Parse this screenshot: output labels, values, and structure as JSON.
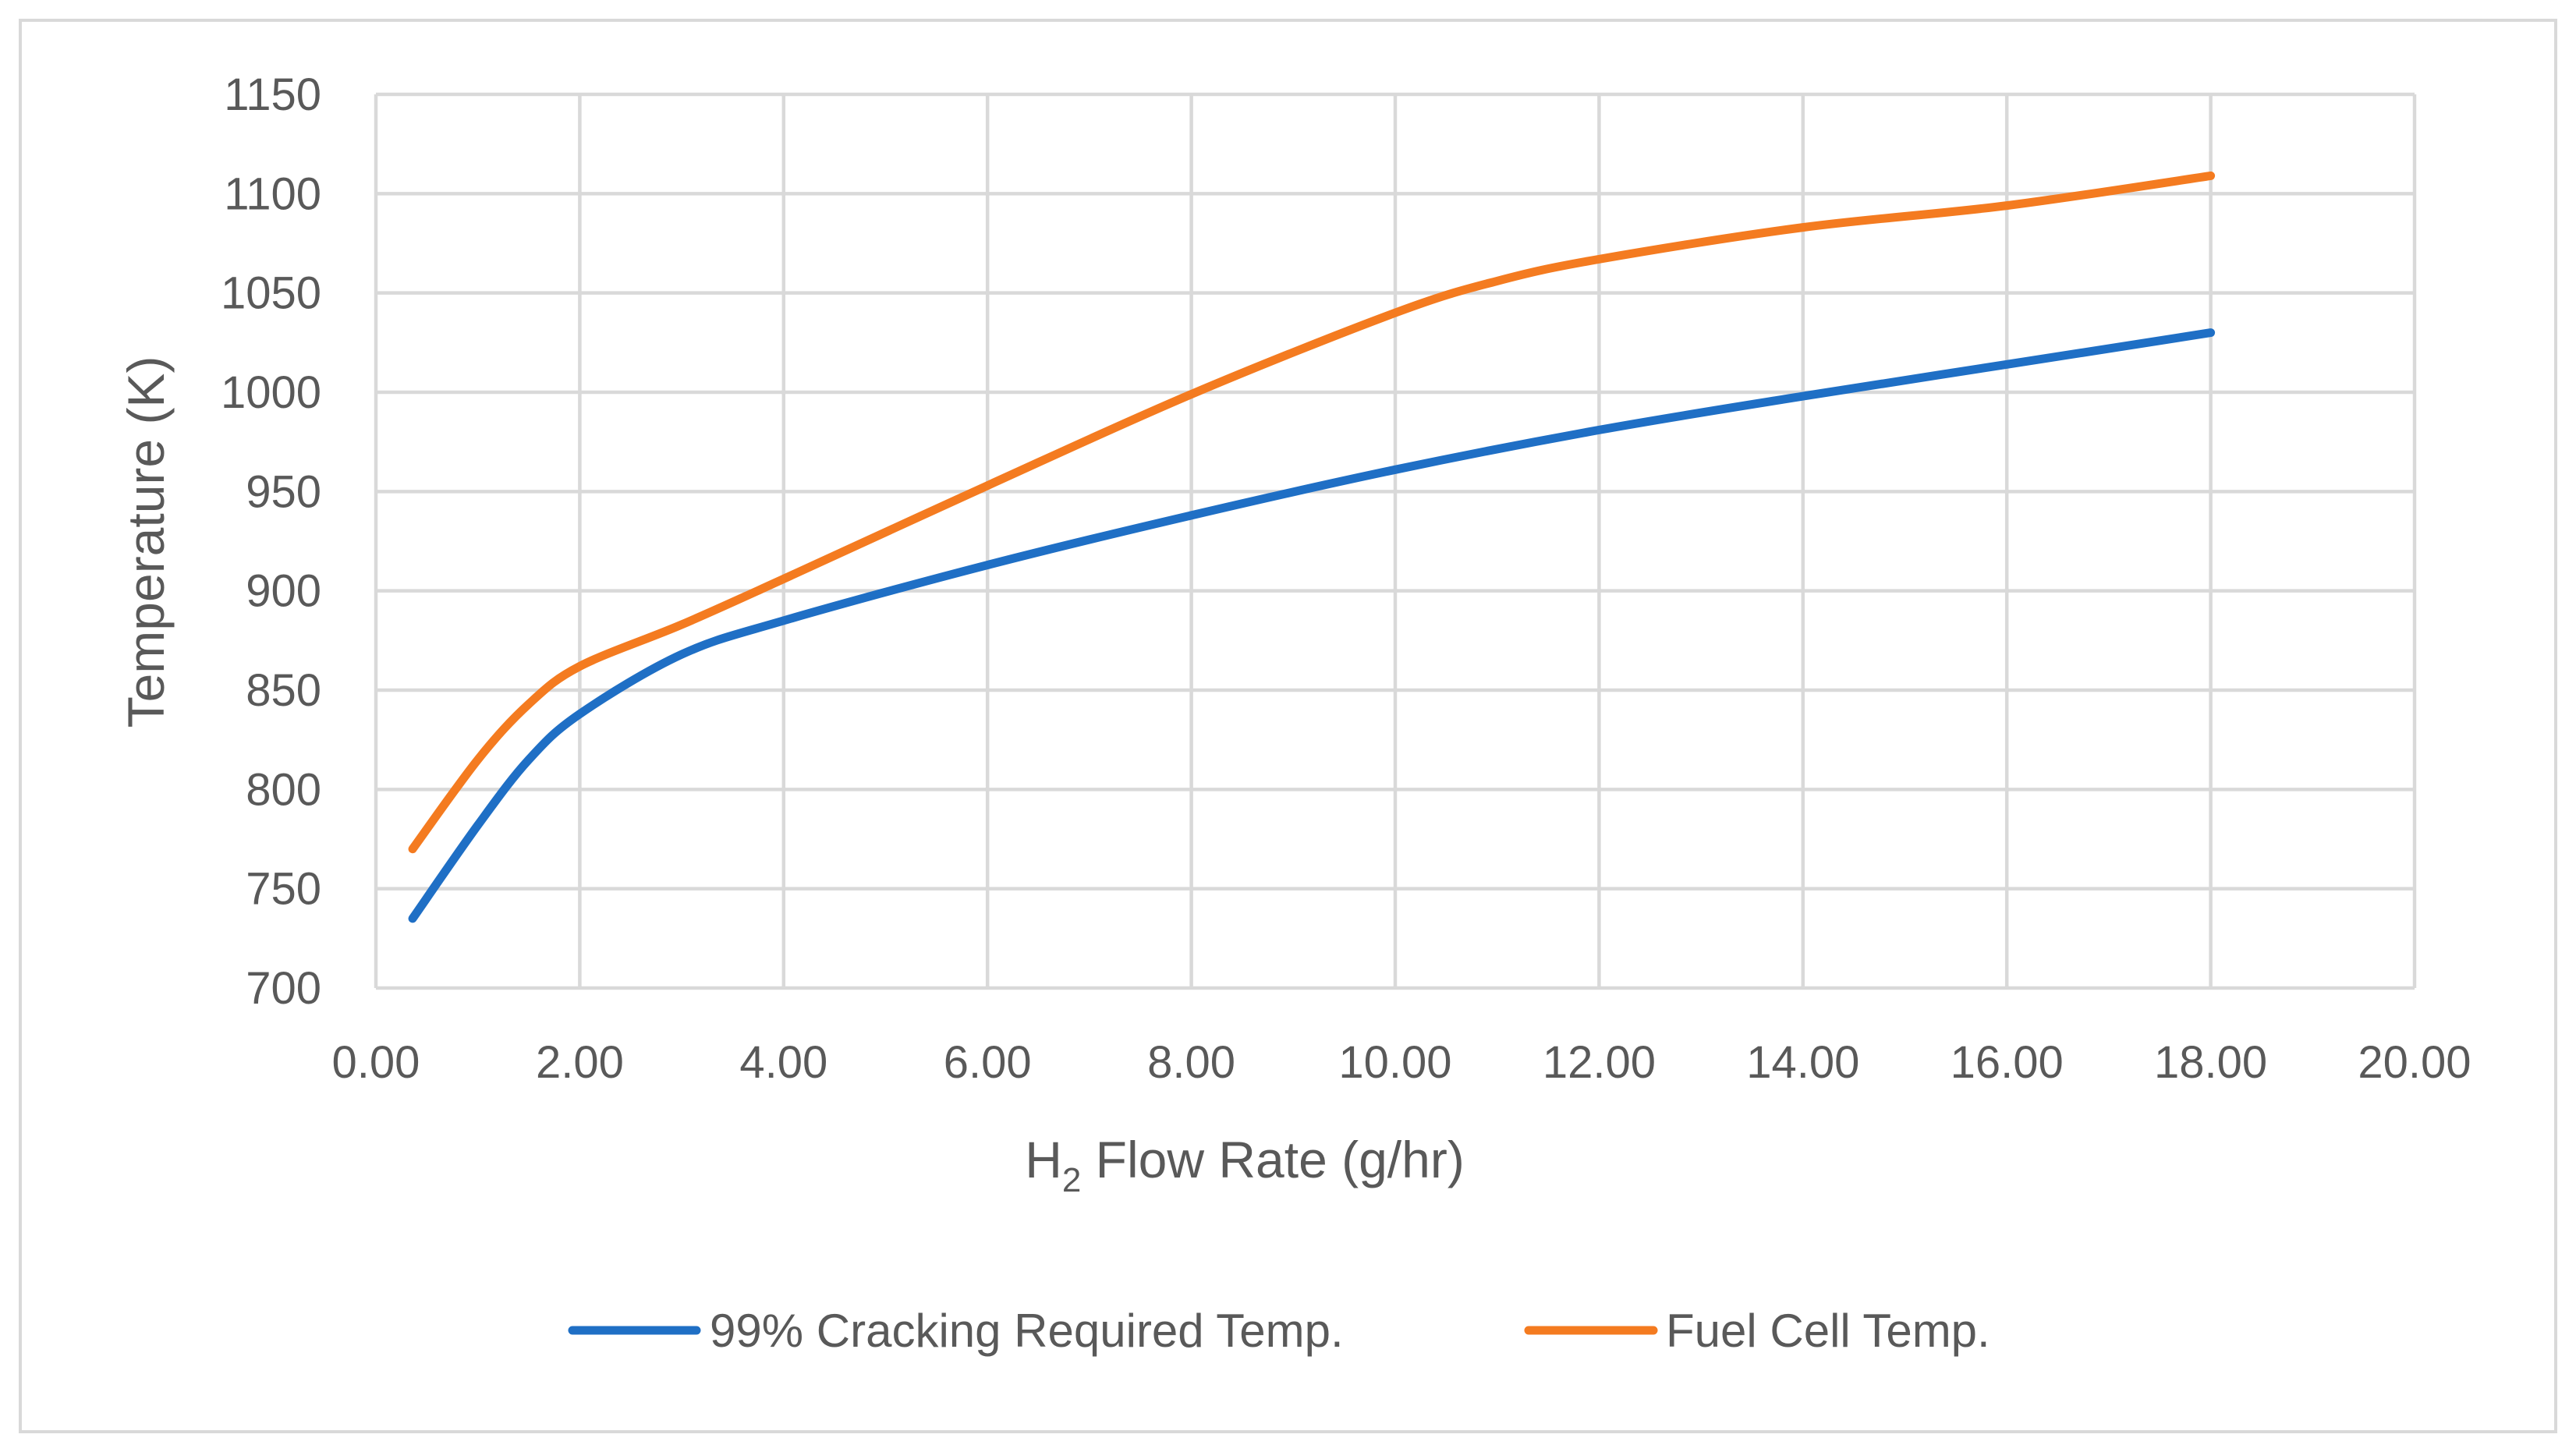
{
  "chart_data": {
    "type": "line",
    "title": "",
    "xlabel_main": "H",
    "xlabel_sub": "2",
    "xlabel_rest": " Flow Rate (g/hr)",
    "ylabel": "Temperature (K)",
    "xlim": [
      0,
      20
    ],
    "ylim": [
      700,
      1150
    ],
    "xticks": [
      0,
      2,
      4,
      6,
      8,
      10,
      12,
      14,
      16,
      18,
      20
    ],
    "xtick_labels": [
      "0.00",
      "2.00",
      "4.00",
      "6.00",
      "8.00",
      "10.00",
      "12.00",
      "14.00",
      "16.00",
      "18.00",
      "20.00"
    ],
    "yticks": [
      700,
      750,
      800,
      850,
      900,
      950,
      1000,
      1050,
      1100,
      1150
    ],
    "ytick_labels": [
      "700",
      "750",
      "800",
      "850",
      "900",
      "950",
      "1000",
      "1050",
      "1100",
      "1150"
    ],
    "grid": true,
    "legend_position": "bottom",
    "series": [
      {
        "name": "99% Cracking Required Temp.",
        "color": "#1f6fc5",
        "x": [
          0.36,
          1.0,
          1.5,
          2.0,
          3.0,
          4.0,
          6.0,
          8.0,
          10.0,
          12.0,
          14.0,
          16.0,
          18.0
        ],
        "y": [
          735,
          782,
          815,
          838,
          868,
          885,
          913,
          938,
          961,
          981,
          998,
          1014,
          1030
        ]
      },
      {
        "name": "Fuel Cell Temp.",
        "color": "#f47b20",
        "x": [
          0.36,
          1.0,
          1.5,
          2.0,
          3.0,
          4.0,
          6.0,
          8.0,
          10.0,
          11.0,
          12.0,
          14.0,
          16.0,
          18.0
        ],
        "y": [
          770,
          815,
          843,
          862,
          883,
          906,
          953,
          999,
          1040,
          1056,
          1067,
          1083,
          1094,
          1109
        ]
      }
    ]
  }
}
